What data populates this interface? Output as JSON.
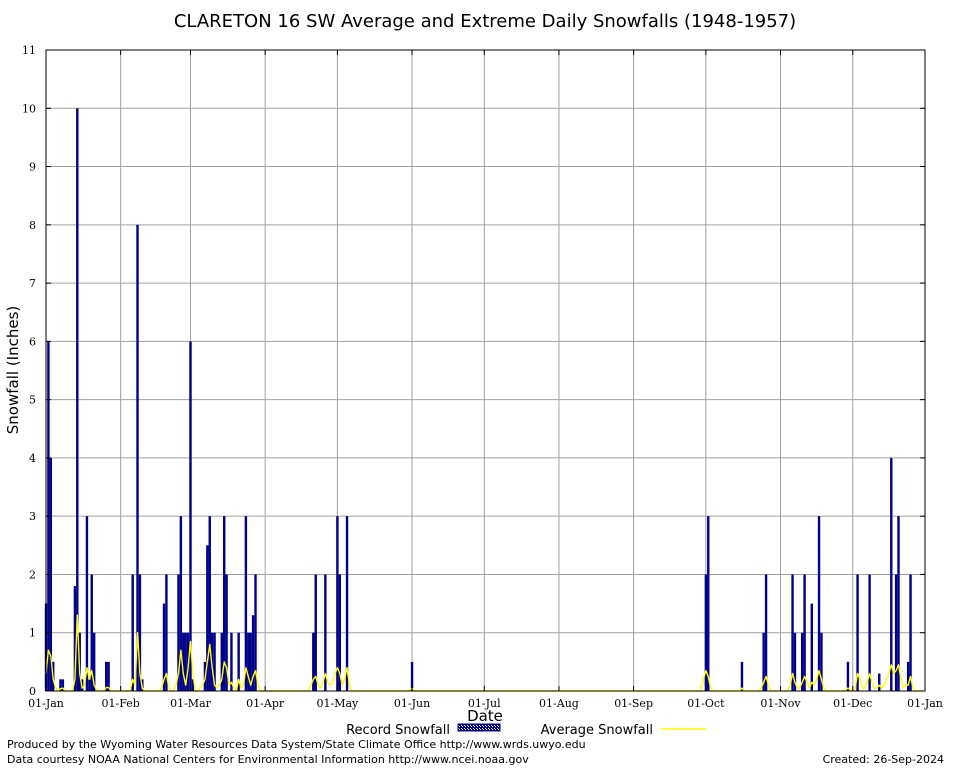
{
  "chart_data": {
    "type": "bar",
    "title": "CLARETON 16 SW Average and Extreme Daily Snowfalls (1948-1957)",
    "xlabel": "Date",
    "ylabel": "Snowfall (Inches)",
    "ylim": [
      0,
      11
    ],
    "yticks": [
      "0",
      "1",
      "2",
      "3",
      "4",
      "5",
      "6",
      "7",
      "8",
      "9",
      "10",
      "11"
    ],
    "xlim_days": [
      1,
      366
    ],
    "xticks": [
      {
        "label": "01-Jan",
        "day": 1
      },
      {
        "label": "01-Feb",
        "day": 32
      },
      {
        "label": "01-Mar",
        "day": 61
      },
      {
        "label": "01-Apr",
        "day": 92
      },
      {
        "label": "01-May",
        "day": 122
      },
      {
        "label": "01-Jun",
        "day": 153
      },
      {
        "label": "01-Jul",
        "day": 183
      },
      {
        "label": "01-Aug",
        "day": 214
      },
      {
        "label": "01-Sep",
        "day": 245
      },
      {
        "label": "01-Oct",
        "day": 275
      },
      {
        "label": "01-Nov",
        "day": 306
      },
      {
        "label": "01-Dec",
        "day": 336
      },
      {
        "label": "01-Jan",
        "day": 366
      }
    ],
    "grid": true,
    "series": [
      {
        "name": "Record Snowfall",
        "kind": "bar",
        "color": "#00008b",
        "points": [
          [
            1,
            1.5
          ],
          [
            2,
            6
          ],
          [
            3,
            4
          ],
          [
            4,
            0.5
          ],
          [
            7,
            0.2
          ],
          [
            8,
            0.2
          ],
          [
            13,
            1.8
          ],
          [
            14,
            10
          ],
          [
            15,
            1
          ],
          [
            16,
            0.2
          ],
          [
            18,
            3
          ],
          [
            19,
            0.2
          ],
          [
            20,
            2
          ],
          [
            21,
            1
          ],
          [
            26,
            0.5
          ],
          [
            27,
            0.5
          ],
          [
            37,
            2
          ],
          [
            39,
            8
          ],
          [
            40,
            2
          ],
          [
            41,
            0.2
          ],
          [
            50,
            1.5
          ],
          [
            51,
            2
          ],
          [
            56,
            2
          ],
          [
            57,
            3
          ],
          [
            58,
            1
          ],
          [
            59,
            1
          ],
          [
            60,
            1
          ],
          [
            61,
            6
          ],
          [
            62,
            0.2
          ],
          [
            67,
            0.5
          ],
          [
            68,
            2.5
          ],
          [
            69,
            3
          ],
          [
            70,
            1
          ],
          [
            71,
            1
          ],
          [
            74,
            1
          ],
          [
            75,
            3
          ],
          [
            76,
            2
          ],
          [
            78,
            1
          ],
          [
            81,
            1
          ],
          [
            84,
            3
          ],
          [
            85,
            1
          ],
          [
            86,
            1
          ],
          [
            87,
            1.3
          ],
          [
            88,
            2
          ],
          [
            112,
            1
          ],
          [
            113,
            2
          ],
          [
            117,
            2
          ],
          [
            122,
            3
          ],
          [
            123,
            2
          ],
          [
            126,
            3
          ],
          [
            153,
            0.5
          ],
          [
            275,
            2
          ],
          [
            276,
            3
          ],
          [
            290,
            0.5
          ],
          [
            299,
            1
          ],
          [
            300,
            2
          ],
          [
            311,
            2
          ],
          [
            312,
            1
          ],
          [
            315,
            1
          ],
          [
            316,
            2
          ],
          [
            319,
            1.5
          ],
          [
            322,
            3
          ],
          [
            323,
            1
          ],
          [
            334,
            0.5
          ],
          [
            338,
            2
          ],
          [
            343,
            2
          ],
          [
            347,
            0.3
          ],
          [
            352,
            4
          ],
          [
            354,
            2
          ],
          [
            355,
            3
          ],
          [
            359,
            0.5
          ],
          [
            360,
            2
          ]
        ]
      },
      {
        "name": "Average Snowfall",
        "kind": "line",
        "color": "#ffff00",
        "points": [
          [
            1,
            0.3
          ],
          [
            2,
            0.7
          ],
          [
            3,
            0.6
          ],
          [
            4,
            0.2
          ],
          [
            5,
            0.05
          ],
          [
            6,
            0
          ],
          [
            7,
            0.04
          ],
          [
            8,
            0.05
          ],
          [
            9,
            0
          ],
          [
            10,
            0
          ],
          [
            11,
            0
          ],
          [
            12,
            0
          ],
          [
            13,
            0.2
          ],
          [
            14,
            1.3
          ],
          [
            15,
            0.3
          ],
          [
            16,
            0.05
          ],
          [
            17,
            0.1
          ],
          [
            18,
            0.4
          ],
          [
            19,
            0.2
          ],
          [
            20,
            0.35
          ],
          [
            21,
            0.1
          ],
          [
            22,
            0.02
          ],
          [
            23,
            0
          ],
          [
            24,
            0
          ],
          [
            25,
            0
          ],
          [
            26,
            0.06
          ],
          [
            27,
            0.06
          ],
          [
            28,
            0
          ],
          [
            29,
            0
          ],
          [
            30,
            0
          ],
          [
            35,
            0
          ],
          [
            36,
            0.02
          ],
          [
            37,
            0.2
          ],
          [
            38,
            0.1
          ],
          [
            39,
            1
          ],
          [
            40,
            0.3
          ],
          [
            41,
            0.05
          ],
          [
            42,
            0
          ],
          [
            48,
            0
          ],
          [
            49,
            0.05
          ],
          [
            50,
            0.2
          ],
          [
            51,
            0.3
          ],
          [
            52,
            0.05
          ],
          [
            53,
            0
          ],
          [
            54,
            0
          ],
          [
            55,
            0.1
          ],
          [
            56,
            0.3
          ],
          [
            57,
            0.7
          ],
          [
            58,
            0.3
          ],
          [
            59,
            0.1
          ],
          [
            60,
            0.4
          ],
          [
            61,
            0.85
          ],
          [
            62,
            0.3
          ],
          [
            63,
            0
          ],
          [
            64,
            0
          ],
          [
            65,
            0.05
          ],
          [
            66,
            0.1
          ],
          [
            67,
            0.2
          ],
          [
            68,
            0.5
          ],
          [
            69,
            0.8
          ],
          [
            70,
            0.4
          ],
          [
            71,
            0.1
          ],
          [
            72,
            0.05
          ],
          [
            73,
            0.1
          ],
          [
            74,
            0.2
          ],
          [
            75,
            0.5
          ],
          [
            76,
            0.4
          ],
          [
            77,
            0.1
          ],
          [
            78,
            0.15
          ],
          [
            79,
            0.05
          ],
          [
            80,
            0
          ],
          [
            81,
            0.2
          ],
          [
            82,
            0.05
          ],
          [
            83,
            0.1
          ],
          [
            84,
            0.4
          ],
          [
            85,
            0.25
          ],
          [
            86,
            0.1
          ],
          [
            87,
            0.25
          ],
          [
            88,
            0.35
          ],
          [
            89,
            0.1
          ],
          [
            90,
            0
          ],
          [
            91,
            0
          ],
          [
            110,
            0
          ],
          [
            111,
            0.1
          ],
          [
            112,
            0.2
          ],
          [
            113,
            0.25
          ],
          [
            114,
            0.1
          ],
          [
            115,
            0.05
          ],
          [
            116,
            0.15
          ],
          [
            117,
            0.3
          ],
          [
            118,
            0.15
          ],
          [
            119,
            0.1
          ],
          [
            120,
            0.15
          ],
          [
            121,
            0.3
          ],
          [
            122,
            0.4
          ],
          [
            123,
            0.3
          ],
          [
            124,
            0.1
          ],
          [
            125,
            0.2
          ],
          [
            126,
            0.4
          ],
          [
            127,
            0.1
          ],
          [
            128,
            0
          ],
          [
            151,
            0
          ],
          [
            152,
            0.02
          ],
          [
            153,
            0.05
          ],
          [
            154,
            0
          ],
          [
            272,
            0
          ],
          [
            273,
            0.02
          ],
          [
            274,
            0.2
          ],
          [
            275,
            0.35
          ],
          [
            276,
            0.25
          ],
          [
            277,
            0.05
          ],
          [
            278,
            0
          ],
          [
            289,
            0
          ],
          [
            290,
            0.05
          ],
          [
            291,
            0
          ],
          [
            297,
            0
          ],
          [
            298,
            0.05
          ],
          [
            299,
            0.15
          ],
          [
            300,
            0.25
          ],
          [
            301,
            0.1
          ],
          [
            302,
            0
          ],
          [
            309,
            0
          ],
          [
            310,
            0.1
          ],
          [
            311,
            0.3
          ],
          [
            312,
            0.15
          ],
          [
            313,
            0.05
          ],
          [
            314,
            0.05
          ],
          [
            315,
            0.15
          ],
          [
            316,
            0.25
          ],
          [
            317,
            0.15
          ],
          [
            318,
            0.05
          ],
          [
            319,
            0.15
          ],
          [
            320,
            0.1
          ],
          [
            321,
            0.2
          ],
          [
            322,
            0.35
          ],
          [
            323,
            0.2
          ],
          [
            324,
            0.05
          ],
          [
            325,
            0
          ],
          [
            332,
            0
          ],
          [
            333,
            0.02
          ],
          [
            334,
            0.05
          ],
          [
            335,
            0.02
          ],
          [
            336,
            0
          ],
          [
            337,
            0.05
          ],
          [
            338,
            0.3
          ],
          [
            339,
            0.2
          ],
          [
            340,
            0.05
          ],
          [
            341,
            0.05
          ],
          [
            342,
            0.15
          ],
          [
            343,
            0.3
          ],
          [
            344,
            0.15
          ],
          [
            345,
            0.05
          ],
          [
            346,
            0.05
          ],
          [
            347,
            0.1
          ],
          [
            348,
            0.05
          ],
          [
            349,
            0.1
          ],
          [
            350,
            0.2
          ],
          [
            351,
            0.3
          ],
          [
            352,
            0.45
          ],
          [
            353,
            0.3
          ],
          [
            354,
            0.35
          ],
          [
            355,
            0.45
          ],
          [
            356,
            0.2
          ],
          [
            357,
            0.05
          ],
          [
            358,
            0.1
          ],
          [
            359,
            0.1
          ],
          [
            360,
            0.25
          ],
          [
            361,
            0.05
          ],
          [
            362,
            0
          ]
        ]
      }
    ],
    "legend": {
      "placement": "bottom",
      "items": [
        {
          "label": "Record Snowfall",
          "swatch": "hatched-bar"
        },
        {
          "label": "Average Snowfall",
          "swatch": "line"
        }
      ]
    }
  },
  "footer": {
    "produced_by": "Produced by the Wyoming Water Resources Data System/State Climate Office http://www.wrds.uwyo.edu",
    "courtesy": "Data courtesy NOAA National Centers for Environmental Information http://www.ncei.noaa.gov",
    "created": "Created:  26-Sep-2024"
  }
}
